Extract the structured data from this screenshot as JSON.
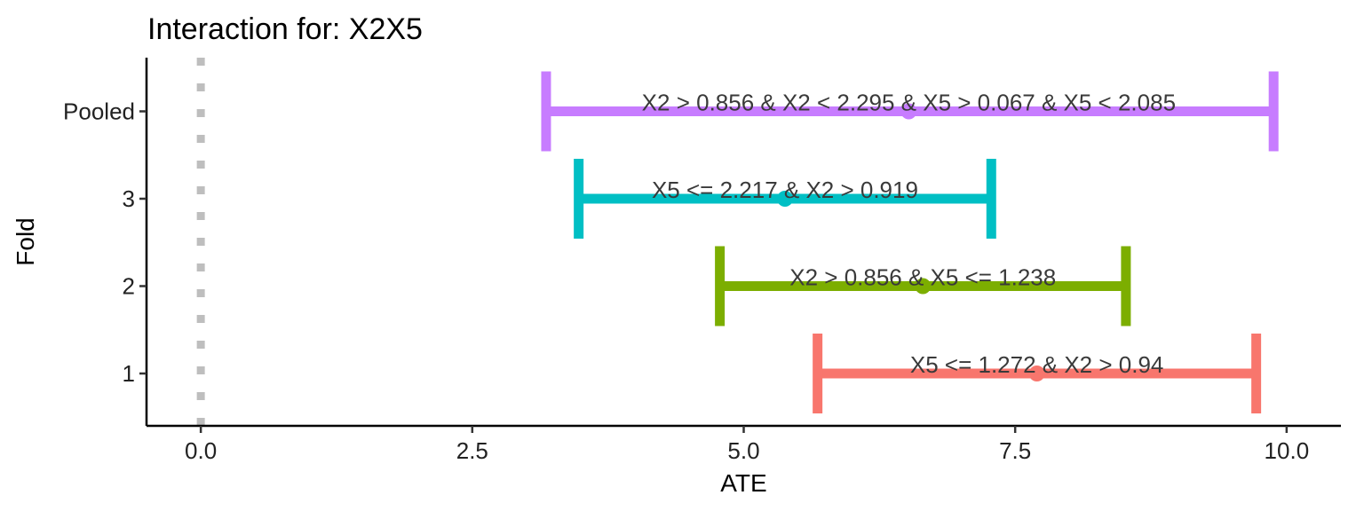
{
  "chart_data": {
    "type": "errorbar",
    "title": "Interaction for: X2X5",
    "xlabel": "ATE",
    "ylabel": "Fold",
    "xlim": [
      -0.5,
      10.5
    ],
    "x_ticks": [
      "0.0",
      "2.5",
      "5.0",
      "7.5",
      "10.0"
    ],
    "x_tick_values": [
      0,
      2.5,
      5,
      7.5,
      10
    ],
    "categories": [
      "1",
      "2",
      "3",
      "Pooled"
    ],
    "reference_line": {
      "x": 0,
      "style": "dotted",
      "color": "#BEBEBE"
    },
    "series": [
      {
        "fold": "1",
        "estimate": 7.7,
        "lower": 5.68,
        "upper": 9.72,
        "label": "X5 <= 1.272 & X2 > 0.94",
        "color": "#F8766D"
      },
      {
        "fold": "2",
        "estimate": 6.65,
        "lower": 4.78,
        "upper": 8.52,
        "label": "X2 > 0.856 & X5 <= 1.238",
        "color": "#7CAE00"
      },
      {
        "fold": "3",
        "estimate": 5.38,
        "lower": 3.48,
        "upper": 7.28,
        "label": "X5 <= 2.217 & X2 > 0.919",
        "color": "#00BFC4"
      },
      {
        "fold": "Pooled",
        "estimate": 6.52,
        "lower": 3.18,
        "upper": 9.88,
        "label": "X2 > 0.856 & X2 < 2.295 & X5 > 0.067 & X5 < 2.085",
        "color": "#C77CFF"
      }
    ]
  }
}
